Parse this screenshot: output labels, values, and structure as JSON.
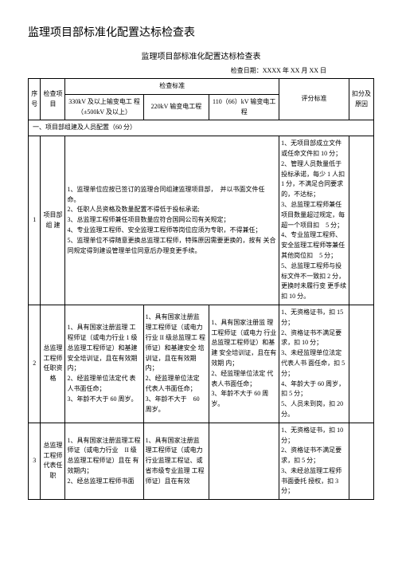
{
  "title_main": "监理项目部标准化配置达标检查表",
  "title_sub": "监理项目部标准化配置达标检查表",
  "check_date": "检查日期：XXXX 年 XX 月 XX 日",
  "headers": {
    "seq": "序号",
    "item": "检查项目",
    "standard": "检查标准",
    "std_col1": "330kV 及以上输变电工 程（±500kV 及以上）",
    "std_col2": "220kV 输变电工程",
    "std_col3": "110（66）kV 输变电工程",
    "score": "评分标准",
    "deduct": "扣分及原因"
  },
  "section1_title": "一、项目部组建及人员配置（60 分）",
  "row1": {
    "seq": "1",
    "item": "项目部组 建",
    "content": "1、监理单位应按已签订的监理合同组建监理项目部，　并以书面文件任命。\n2、任职人员资格及数量配置不得低于投标承诺;\n3、总监理工程师兼任项目数量应符合国网公司有关规定；\n4、专业监理工程师、安全监理工程师等岗位应须为专职，不得兼任；\n5、监理单位不得随意更换总监理工程师，特殊原因需要更换的，按有 关合同规定得到建设管理单位同意后办理变更手续。",
    "score": "1、无项目部成立文件或任命文件扣 10 分；\n2、管理人员数量低于投标承诺，每少 1 人扣 1 分，不满足合同要求的，不达标；\n3、总监理工程师兼任项目数量超过规定，每超一个项目扣　5 分；\n4、专业监理工程师、安全监理工程师等兼任其他岗位扣　5 分；\n5、总监理工程师与投标文件不一致扣 2 分，更换时未履行变 更手续扣 10 分。"
  },
  "row2": {
    "seq": "2",
    "item": "总监理工程师任职资格",
    "std1": "1、具有国家注册监理 工程师证（或电力行业 1 级 总监理工程师证）和基建 安全培训证，且在有效期 内；\n2、经监理单位法定代 表人书面任命；\n3、年龄不大于 60 周岁。",
    "std2": "1、具有国家注册监 理工程师证（或电力 行业 II 级总监理工 程师证）和基建安全 培训证，且在有效期 内；\n2、经监理单位法定 代表人书面任命；\n3、年龄不大于　60 周岁。",
    "std3": "1、具有国家注册监 理工程师证（或电力 行业总监理工程师证）和基建 安全培训证，且在有效期 内；\n2、经监理单位法定 代表人书面任命；\n3、年龄不大于 60 周岁。",
    "score": "1、无资格证书，扣 15 分；\n2、资格证书不满足要求，扣 10 分；\n3、未经监理单位法定代表人书 面任命，扣 5 分；\n4、年龄大于 60 周岁，扣 5 分；\n5、人员未到岗，扣 20 分。"
  },
  "row3": {
    "seq": "3",
    "item": "总监理工程师代表任职",
    "std1": "1、具有国家注册监理工程师证（或电力行业　II 级总监理工程师证）且在 有效期内；\n2、经总监理工程师书面",
    "std2": "1、具有国家注册监 理工程师证（或电力 行业监理工程证、或 省市级专业监理 工程师证）且在有效",
    "std3": "",
    "score": "1、无资格证书，扣 10 分；\n2、资格证书不满足要求，扣 5 分；\n3、未经总监理工程师书面委托 授权，扣 3 分；"
  }
}
